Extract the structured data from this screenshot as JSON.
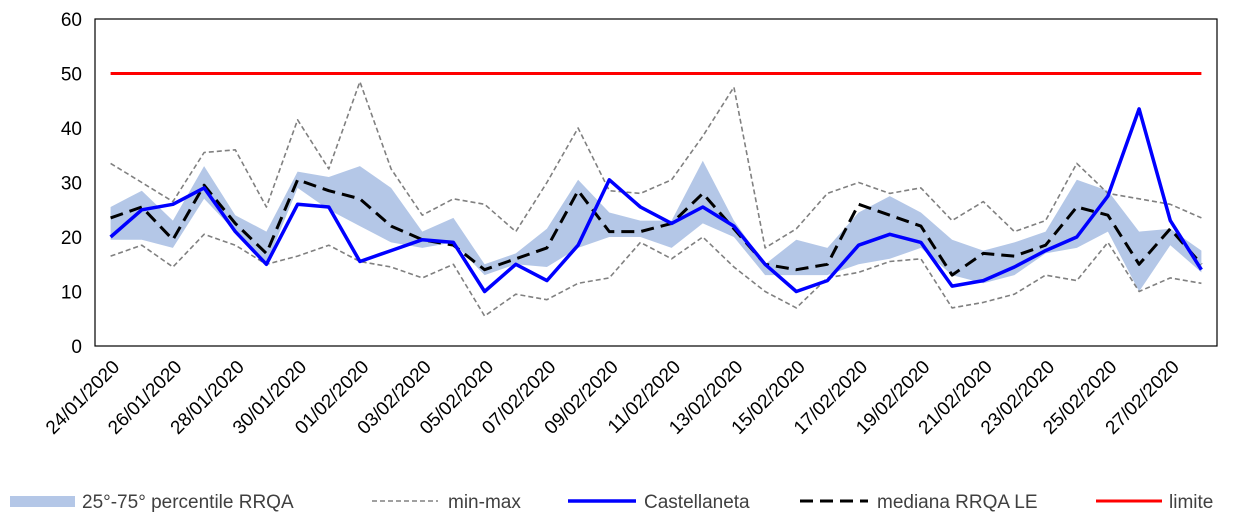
{
  "chart_data": {
    "type": "line",
    "title": "",
    "xlabel": "",
    "ylabel": "",
    "ylim": [
      0,
      60
    ],
    "yticks": [
      0,
      10,
      20,
      30,
      40,
      50,
      60
    ],
    "grid": false,
    "legend_position": "bottom",
    "x": [
      "24/01/2020",
      "25/01/2020",
      "26/01/2020",
      "27/01/2020",
      "28/01/2020",
      "29/01/2020",
      "30/01/2020",
      "31/01/2020",
      "01/02/2020",
      "02/02/2020",
      "03/02/2020",
      "04/02/2020",
      "05/02/2020",
      "06/02/2020",
      "07/02/2020",
      "08/02/2020",
      "09/02/2020",
      "10/02/2020",
      "11/02/2020",
      "12/02/2020",
      "13/02/2020",
      "14/02/2020",
      "15/02/2020",
      "16/02/2020",
      "17/02/2020",
      "18/02/2020",
      "19/02/2020",
      "20/02/2020",
      "21/02/2020",
      "22/02/2020",
      "23/02/2020",
      "24/02/2020",
      "25/02/2020",
      "26/02/2020",
      "27/02/2020",
      "28/02/2020"
    ],
    "x_tick_labels": [
      "24/01/2020",
      "26/01/2020",
      "28/01/2020",
      "30/01/2020",
      "01/02/2020",
      "03/02/2020",
      "05/02/2020",
      "07/02/2020",
      "09/02/2020",
      "11/02/2020",
      "13/02/2020",
      "15/02/2020",
      "17/02/2020",
      "19/02/2020",
      "21/02/2020",
      "23/02/2020",
      "25/02/2020",
      "27/02/2020"
    ],
    "band": {
      "name": "25°-75° percentile RRQA",
      "color": "#b4c7e7",
      "lower": [
        19.5,
        19.5,
        18,
        27,
        21,
        15,
        29,
        25,
        22,
        19,
        18,
        19,
        13,
        15,
        14.5,
        18,
        20,
        20,
        18,
        22.5,
        20,
        13,
        13,
        13,
        15,
        16,
        18,
        13,
        11.5,
        13,
        17,
        18,
        21,
        10,
        18.5,
        13.5
      ],
      "upper": [
        25.5,
        28.5,
        23,
        33,
        24,
        21,
        32,
        31,
        33,
        29,
        21,
        23.5,
        15,
        17,
        21.5,
        30.5,
        24.5,
        23,
        23,
        34,
        23,
        15,
        19.5,
        18,
        24.5,
        27.5,
        24.5,
        19.5,
        17.5,
        19,
        21,
        30.5,
        28.5,
        21,
        21.5,
        17.5
      ]
    },
    "series": [
      {
        "name": "min-max",
        "style": "dotted",
        "color": "#808080",
        "values_min": [
          16.5,
          18.5,
          14.5,
          20.5,
          18.5,
          15,
          16.5,
          18.5,
          15.5,
          14.5,
          12.5,
          15,
          5.5,
          9.5,
          8.5,
          11.5,
          12.5,
          19,
          16,
          20,
          14.5,
          10,
          7,
          12.5,
          13.5,
          15.5,
          16,
          7,
          8,
          9.5,
          13,
          12,
          19,
          10,
          12.5,
          11.5
        ],
        "values_max": [
          33.5,
          30,
          26.5,
          35.5,
          36,
          25.5,
          41.5,
          32.5,
          48.5,
          32.5,
          24,
          27,
          26,
          21,
          30,
          40,
          28.5,
          28,
          30.5,
          38.5,
          47.5,
          18,
          21.5,
          28,
          30,
          28,
          29,
          23,
          26.5,
          21,
          23,
          33.5,
          28,
          27,
          26,
          23.5
        ]
      },
      {
        "name": "Castellaneta",
        "style": "solid",
        "color": "#0000ff",
        "values": [
          20,
          25,
          26,
          29,
          21,
          15,
          26,
          25.5,
          15.5,
          17.5,
          19.5,
          19,
          10,
          15,
          12,
          18.5,
          30.5,
          25.5,
          22.5,
          25.5,
          22,
          15,
          10,
          12,
          18.5,
          20.5,
          19,
          11,
          12,
          14.5,
          17.5,
          20,
          27.5,
          43.5,
          23,
          14
        ]
      },
      {
        "name": "mediana RRQA LE",
        "style": "dashed",
        "color": "#000000",
        "values": [
          23.5,
          25.5,
          19.5,
          29.5,
          22.5,
          17,
          30.5,
          28.5,
          27,
          22,
          19.5,
          18.5,
          14,
          16,
          18,
          28.5,
          21,
          21,
          22.5,
          28,
          21.5,
          15,
          14,
          15,
          26,
          24,
          22,
          13,
          17,
          16.5,
          18.5,
          25.5,
          24,
          15,
          21.5,
          15
        ]
      },
      {
        "name": "limite",
        "style": "solid",
        "color": "#ff0000",
        "values": [
          50,
          50,
          50,
          50,
          50,
          50,
          50,
          50,
          50,
          50,
          50,
          50,
          50,
          50,
          50,
          50,
          50,
          50,
          50,
          50,
          50,
          50,
          50,
          50,
          50,
          50,
          50,
          50,
          50,
          50,
          50,
          50,
          50,
          50,
          50,
          50
        ]
      }
    ]
  }
}
